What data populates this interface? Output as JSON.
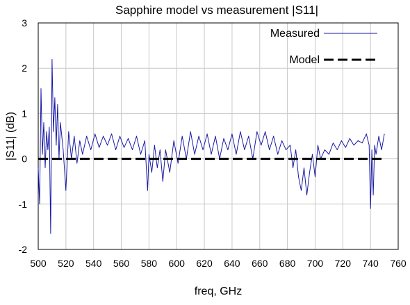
{
  "chart_data": {
    "type": "line",
    "title": "Sapphire model vs measurement |S11|",
    "xlabel": "freq, GHz",
    "ylabel": "|S11| (dB)",
    "xlim": [
      500,
      760
    ],
    "ylim": [
      -2,
      3
    ],
    "x_ticks": [
      500,
      520,
      540,
      560,
      580,
      600,
      620,
      640,
      660,
      680,
      700,
      720,
      740,
      760
    ],
    "y_ticks": [
      -2,
      -1,
      0,
      1,
      2,
      3
    ],
    "grid": true,
    "legend_position": "top-right",
    "series": [
      {
        "name": "Measured",
        "color": "#1a1aa6",
        "style": "solid",
        "x": [
          500,
          501,
          502,
          503,
          504,
          505,
          506,
          507,
          508,
          509,
          510,
          511,
          512,
          513,
          514,
          515,
          516,
          518,
          520,
          522,
          524,
          526,
          528,
          530,
          532,
          535,
          538,
          541,
          544,
          547,
          550,
          553,
          556,
          559,
          562,
          565,
          568,
          571,
          574,
          577,
          579,
          580,
          582,
          584,
          586,
          588,
          590,
          592,
          595,
          598,
          601,
          604,
          607,
          610,
          613,
          616,
          619,
          622,
          625,
          628,
          631,
          634,
          637,
          640,
          643,
          646,
          649,
          652,
          655,
          658,
          661,
          664,
          667,
          670,
          673,
          676,
          679,
          682,
          684,
          686,
          688,
          690,
          692,
          694,
          696,
          698,
          700,
          702,
          704,
          707,
          710,
          713,
          716,
          719,
          722,
          725,
          728,
          731,
          734,
          737,
          739,
          740,
          741,
          742,
          743,
          744,
          746,
          748,
          750
        ],
        "y": [
          -0.2,
          -1.0,
          1.55,
          0.1,
          0.8,
          -0.2,
          0.6,
          0.2,
          0.7,
          -1.65,
          2.2,
          0.6,
          1.35,
          0.3,
          1.2,
          0.0,
          0.8,
          0.2,
          -0.7,
          0.6,
          0.0,
          0.5,
          -0.1,
          0.4,
          0.1,
          0.5,
          0.2,
          0.55,
          0.25,
          0.5,
          0.3,
          0.55,
          0.2,
          0.5,
          0.25,
          0.45,
          0.2,
          0.5,
          0.1,
          0.4,
          -0.7,
          0.1,
          -0.3,
          0.3,
          -0.2,
          0.2,
          -0.5,
          0.2,
          -0.3,
          0.4,
          -0.1,
          0.5,
          0.0,
          0.6,
          0.1,
          0.5,
          0.2,
          0.55,
          0.1,
          0.5,
          0.0,
          0.45,
          0.2,
          0.55,
          0.1,
          0.6,
          0.2,
          0.5,
          0.0,
          0.6,
          0.3,
          0.6,
          0.2,
          0.5,
          0.1,
          0.4,
          0.2,
          0.3,
          -0.2,
          0.2,
          -0.4,
          -0.7,
          -0.2,
          -0.8,
          -0.3,
          0.1,
          -0.4,
          0.3,
          0.0,
          0.2,
          0.1,
          0.35,
          0.2,
          0.4,
          0.25,
          0.45,
          0.3,
          0.4,
          0.35,
          0.55,
          0.3,
          -1.1,
          0.2,
          -0.8,
          0.3,
          0.1,
          0.5,
          0.2,
          0.55
        ]
      },
      {
        "name": "Model",
        "color": "#000000",
        "style": "dashed",
        "x": [
          500,
          750
        ],
        "y": [
          0,
          0
        ]
      }
    ]
  }
}
